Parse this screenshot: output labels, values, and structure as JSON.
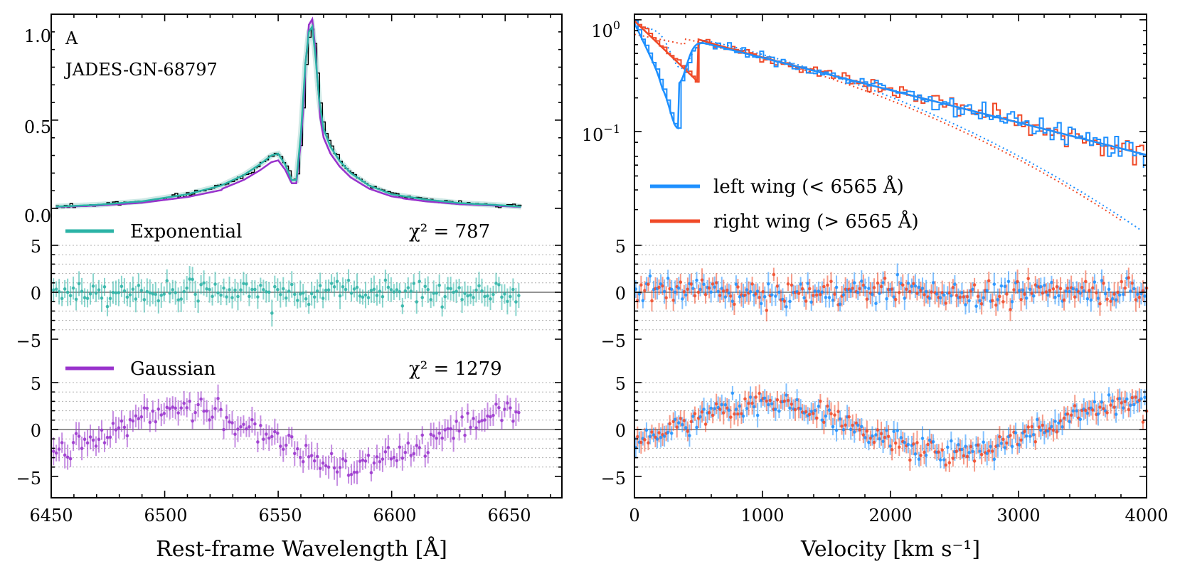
{
  "chart_data": [
    {
      "id": "left",
      "type": "line",
      "panel_label": "A",
      "object_name": "JADES-GN-68797",
      "xlabel": "Rest-frame Wavelength [Å]",
      "xlim": [
        6450,
        6675
      ],
      "xticks": [
        "6450",
        "6500",
        "6550",
        "6600",
        "6650"
      ],
      "top": {
        "ylim": [
          -0.02,
          1.1
        ],
        "yticks": [
          "0.0",
          "0.5",
          "1.0"
        ],
        "data_color": "#000000",
        "series": [
          {
            "name": "Exponential",
            "color": "#2bb3a6"
          },
          {
            "name": "Gaussian",
            "color": "#9932cc"
          }
        ],
        "profile_points": {
          "x": [
            6452,
            6470,
            6490,
            6510,
            6525,
            6535,
            6542,
            6547,
            6550,
            6553,
            6556,
            6558,
            6560,
            6562,
            6563.5,
            6565,
            6566.5,
            6568,
            6570,
            6573,
            6577,
            6582,
            6590,
            6600,
            6615,
            6630,
            6645,
            6657
          ],
          "y": [
            0.01,
            0.02,
            0.04,
            0.08,
            0.13,
            0.19,
            0.25,
            0.3,
            0.31,
            0.25,
            0.16,
            0.16,
            0.42,
            0.82,
            1.0,
            1.03,
            0.85,
            0.62,
            0.45,
            0.35,
            0.27,
            0.2,
            0.13,
            0.08,
            0.05,
            0.03,
            0.02,
            0.01
          ]
        }
      },
      "residual_exponential": {
        "legend": "Exponential",
        "chi2_text": "χ² = 787",
        "ylim": [
          -7,
          6
        ],
        "yticks": [
          "−5",
          "0",
          "5"
        ],
        "color": "#2bb3a6"
      },
      "residual_gaussian": {
        "legend": "Gaussian",
        "chi2_text": "χ² = 1279",
        "ylim": [
          -7,
          6
        ],
        "yticks": [
          "−5",
          "0",
          "5"
        ],
        "color": "#9932cc"
      }
    },
    {
      "id": "right",
      "type": "line",
      "xlabel": "Velocity [km s⁻¹]",
      "xlim": [
        0,
        4000
      ],
      "xticks": [
        "0",
        "1000",
        "2000",
        "3000",
        "4000"
      ],
      "top": {
        "yscale": "log",
        "ylim_log10": [
          -1.72,
          0.05
        ],
        "yticks": [
          {
            "mant": "10",
            "exp": "0"
          },
          {
            "mant": "10",
            "exp": "−1"
          }
        ],
        "series": [
          {
            "name": "left wing (< 6565 Å)",
            "color": "#1e90ff"
          },
          {
            "name": "right wing (> 6565 Å)",
            "color": "#f04a28"
          }
        ]
      },
      "residual_1": {
        "ylim": [
          -7,
          6
        ],
        "yticks": [
          "−5",
          "0",
          "5"
        ]
      },
      "residual_2": {
        "ylim": [
          -7,
          6
        ],
        "yticks": [
          "−5",
          "0",
          "5"
        ]
      }
    }
  ]
}
